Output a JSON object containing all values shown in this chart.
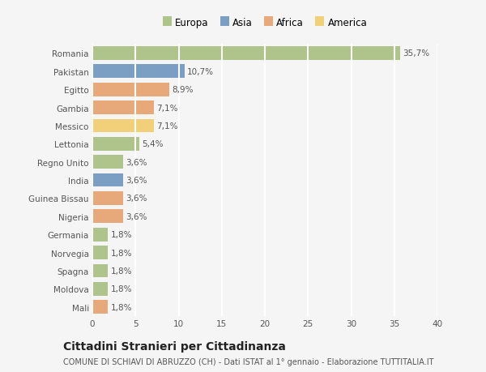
{
  "countries": [
    "Romania",
    "Pakistan",
    "Egitto",
    "Gambia",
    "Messico",
    "Lettonia",
    "Regno Unito",
    "India",
    "Guinea Bissau",
    "Nigeria",
    "Germania",
    "Norvegia",
    "Spagna",
    "Moldova",
    "Mali"
  ],
  "values": [
    35.7,
    10.7,
    8.9,
    7.1,
    7.1,
    5.4,
    3.6,
    3.6,
    3.6,
    3.6,
    1.8,
    1.8,
    1.8,
    1.8,
    1.8
  ],
  "labels": [
    "35,7%",
    "10,7%",
    "8,9%",
    "7,1%",
    "7,1%",
    "5,4%",
    "3,6%",
    "3,6%",
    "3,6%",
    "3,6%",
    "1,8%",
    "1,8%",
    "1,8%",
    "1,8%",
    "1,8%"
  ],
  "colors": [
    "#aec48a",
    "#7a9fc2",
    "#e8a97a",
    "#e8a97a",
    "#f2d07a",
    "#aec48a",
    "#aec48a",
    "#7a9fc2",
    "#e8a97a",
    "#e8a97a",
    "#aec48a",
    "#aec48a",
    "#aec48a",
    "#aec48a",
    "#e8a97a"
  ],
  "legend_labels": [
    "Europa",
    "Asia",
    "Africa",
    "America"
  ],
  "legend_colors": [
    "#aec48a",
    "#7a9fc2",
    "#e8a97a",
    "#f2d07a"
  ],
  "title": "Cittadini Stranieri per Cittadinanza",
  "subtitle": "COMUNE DI SCHIAVI DI ABRUZZO (CH) - Dati ISTAT al 1° gennaio - Elaborazione TUTTITALIA.IT",
  "xlim": [
    0,
    40
  ],
  "xticks": [
    0,
    5,
    10,
    15,
    20,
    25,
    30,
    35,
    40
  ],
  "background_color": "#f5f5f5",
  "grid_color": "#ffffff",
  "bar_height": 0.75,
  "label_fontsize": 7.5,
  "tick_fontsize": 7.5,
  "title_fontsize": 10,
  "subtitle_fontsize": 7
}
